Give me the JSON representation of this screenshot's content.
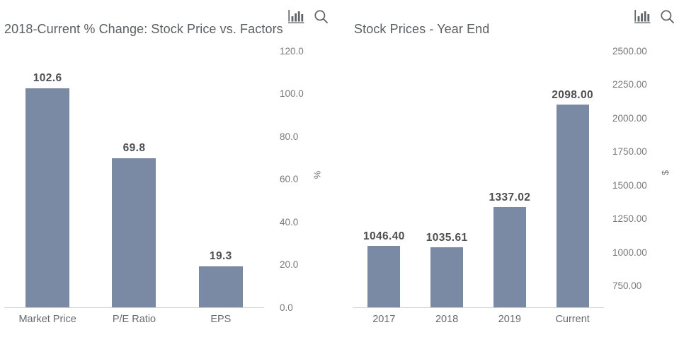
{
  "window": {
    "background": "#ffffff"
  },
  "colors": {
    "bar": "#7a8aa5",
    "title": "#5b5e61",
    "tick_label": "#77797c",
    "category_label": "#67696c",
    "data_label": "#4f4f4f",
    "axis_line": "#d0d3d8",
    "icon": "#5f6468"
  },
  "toolbar": {
    "icons": [
      "bar-chart-icon",
      "zoom-icon"
    ]
  },
  "chart_data": [
    {
      "type": "bar",
      "title": "2018-Current % Change: Stock Price vs. Factors",
      "categories": [
        "Market Price",
        "P/E Ratio",
        "EPS"
      ],
      "values": [
        102.6,
        69.8,
        19.3
      ],
      "data_labels": [
        "102.6",
        "69.8",
        "19.3"
      ],
      "xlabel": "",
      "ylabel": "%",
      "ylim": [
        0,
        120
      ],
      "yticks": [
        0,
        20,
        40,
        60,
        80,
        100,
        120
      ],
      "ytick_labels": [
        "0.0",
        "20.0",
        "40.0",
        "60.0",
        "80.0",
        "100.0",
        "120.0"
      ],
      "axis_side": "right",
      "grid": false,
      "legend": false
    },
    {
      "type": "bar",
      "title": "Stock Prices - Year End",
      "categories": [
        "2017",
        "2018",
        "2019",
        "Current"
      ],
      "values": [
        1046.4,
        1035.61,
        1337.02,
        2098.0
      ],
      "data_labels": [
        "1046.40",
        "1035.61",
        "1337.02",
        "2098.00"
      ],
      "xlabel": "",
      "ylabel": "$",
      "ylim": [
        590,
        2500
      ],
      "yticks": [
        750,
        1000,
        1250,
        1500,
        1750,
        2000,
        2250,
        2500
      ],
      "ytick_labels": [
        "750.00",
        "1000.00",
        "1250.00",
        "1500.00",
        "1750.00",
        "2000.00",
        "2250.00",
        "2500.00"
      ],
      "axis_side": "right",
      "grid": false,
      "legend": false
    }
  ]
}
